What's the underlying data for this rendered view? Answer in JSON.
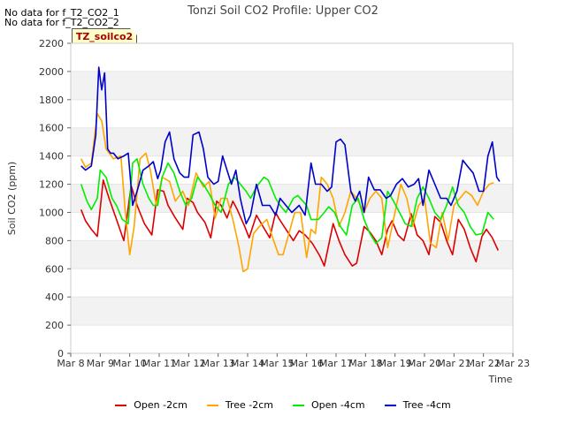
{
  "no_data_notes": [
    "No data for f_T2_CO2_1",
    "No data for f_T2_CO2_2"
  ],
  "tag_label": "TZ_soilco2",
  "chart_data": {
    "type": "line",
    "title": "Tonzi Soil CO2 Profile: Upper CO2",
    "xlabel": "Time",
    "ylabel": "Soil CO2 (ppm)",
    "xlim": [
      8,
      23
    ],
    "ylim": [
      0,
      2200
    ],
    "x_ticks": [
      8,
      9,
      10,
      11,
      12,
      13,
      14,
      15,
      16,
      17,
      18,
      19,
      20,
      21,
      22,
      23
    ],
    "x_tick_labels": [
      "Mar 8",
      "Mar 9",
      "Mar 10",
      "Mar 11",
      "Mar 12",
      "Mar 13",
      "Mar 14",
      "Mar 15",
      "Mar 16",
      "Mar 17",
      "Mar 18",
      "Mar 19",
      "Mar 20",
      "Mar 21",
      "Mar 22",
      "Mar 23"
    ],
    "y_ticks": [
      0,
      200,
      400,
      600,
      800,
      1000,
      1200,
      1400,
      1600,
      1800,
      2000,
      2200
    ],
    "grid": "horizontal bands",
    "legend_position": "bottom",
    "series": [
      {
        "name": "Open -2cm",
        "color": "#dd0000",
        "x": [
          8.35,
          8.5,
          8.7,
          8.9,
          9.1,
          9.3,
          9.55,
          9.8,
          10.05,
          10.25,
          10.5,
          10.75,
          10.95,
          11.15,
          11.3,
          11.55,
          11.8,
          11.95,
          12.15,
          12.3,
          12.55,
          12.75,
          12.95,
          13.1,
          13.3,
          13.5,
          13.65,
          13.9,
          14.05,
          14.3,
          14.55,
          14.75,
          14.95,
          15.05,
          15.3,
          15.55,
          15.75,
          15.95,
          16.2,
          16.45,
          16.6,
          16.9,
          17.1,
          17.3,
          17.55,
          17.7,
          17.95,
          18.15,
          18.35,
          18.55,
          18.75,
          18.9,
          19.1,
          19.3,
          19.55,
          19.75,
          19.95,
          20.15,
          20.35,
          20.55,
          20.75,
          20.95,
          21.15,
          21.35,
          21.55,
          21.75,
          21.95,
          22.1,
          22.3,
          22.5
        ],
        "y": [
          1020,
          940,
          880,
          830,
          1230,
          1100,
          950,
          800,
          1190,
          1050,
          920,
          840,
          1160,
          1150,
          1050,
          960,
          880,
          1100,
          1070,
          1000,
          930,
          820,
          1080,
          1050,
          960,
          1080,
          1020,
          900,
          820,
          980,
          890,
          820,
          1000,
          960,
          880,
          800,
          870,
          840,
          780,
          690,
          620,
          920,
          800,
          700,
          620,
          640,
          900,
          860,
          800,
          700,
          880,
          940,
          840,
          800,
          990,
          840,
          800,
          700,
          970,
          930,
          800,
          700,
          950,
          880,
          750,
          650,
          830,
          880,
          820,
          730
        ]
      },
      {
        "name": "Tree -2cm",
        "color": "#ffa500",
        "x": [
          8.35,
          8.5,
          8.7,
          8.9,
          9.05,
          9.2,
          9.45,
          9.7,
          9.85,
          10.0,
          10.15,
          10.35,
          10.55,
          10.7,
          10.9,
          11.1,
          11.35,
          11.55,
          11.8,
          12.0,
          12.25,
          12.5,
          12.7,
          12.9,
          13.1,
          13.3,
          13.5,
          13.7,
          13.85,
          14.0,
          14.2,
          14.4,
          14.65,
          14.85,
          15.05,
          15.2,
          15.4,
          15.6,
          15.8,
          16.0,
          16.15,
          16.3,
          16.5,
          16.7,
          16.9,
          17.1,
          17.3,
          17.5,
          17.7,
          17.95,
          18.15,
          18.35,
          18.55,
          18.75,
          18.95,
          19.2,
          19.4,
          19.6,
          19.8,
          20.0,
          20.2,
          20.4,
          20.6,
          20.8,
          21.0,
          21.2,
          21.4,
          21.6,
          21.8,
          22.0,
          22.2,
          22.35
        ],
        "y": [
          1380,
          1320,
          1350,
          1700,
          1650,
          1450,
          1380,
          1400,
          1000,
          700,
          900,
          1380,
          1420,
          1300,
          1050,
          1250,
          1220,
          1080,
          1150,
          1050,
          1280,
          1180,
          1220,
          960,
          1100,
          1100,
          950,
          760,
          580,
          600,
          850,
          900,
          950,
          820,
          700,
          700,
          850,
          1000,
          1000,
          680,
          880,
          850,
          1250,
          1200,
          1100,
          900,
          1000,
          1150,
          1100,
          1000,
          1100,
          1150,
          1100,
          750,
          950,
          1200,
          1100,
          900,
          1050,
          1100,
          780,
          750,
          1000,
          800,
          1050,
          1100,
          1150,
          1120,
          1050,
          1150,
          1200,
          1210
        ]
      },
      {
        "name": "Open -4cm",
        "color": "#00ee00",
        "x": [
          8.35,
          8.55,
          8.7,
          8.9,
          9.0,
          9.2,
          9.4,
          9.55,
          9.75,
          9.95,
          10.1,
          10.25,
          10.45,
          10.65,
          10.8,
          10.95,
          11.1,
          11.3,
          11.5,
          11.7,
          11.9,
          12.1,
          12.3,
          12.5,
          12.7,
          12.9,
          13.1,
          13.35,
          13.55,
          13.75,
          13.95,
          14.1,
          14.3,
          14.55,
          14.7,
          14.95,
          15.1,
          15.3,
          15.55,
          15.7,
          16.0,
          16.15,
          16.4,
          16.6,
          16.75,
          16.95,
          17.15,
          17.35,
          17.55,
          17.75,
          17.95,
          18.15,
          18.35,
          18.55,
          18.75,
          18.95,
          19.15,
          19.35,
          19.55,
          19.75,
          19.95,
          20.15,
          20.35,
          20.55,
          20.75,
          20.95,
          21.15,
          21.35,
          21.55,
          21.75,
          21.95,
          22.15,
          22.35
        ],
        "y": [
          1200,
          1080,
          1020,
          1100,
          1300,
          1250,
          1100,
          1050,
          950,
          920,
          1350,
          1380,
          1200,
          1100,
          1050,
          1050,
          1250,
          1350,
          1280,
          1150,
          1050,
          1100,
          1250,
          1200,
          1130,
          1050,
          1000,
          1200,
          1250,
          1200,
          1150,
          1100,
          1180,
          1250,
          1230,
          1100,
          1050,
          1000,
          1100,
          1120,
          1050,
          950,
          950,
          1000,
          1040,
          1000,
          900,
          840,
          1050,
          1100,
          950,
          850,
          780,
          820,
          1150,
          1080,
          1000,
          920,
          900,
          1100,
          1180,
          1100,
          1000,
          950,
          1050,
          1180,
          1050,
          1000,
          900,
          840,
          850,
          1000,
          950
        ]
      },
      {
        "name": "Tree -4cm",
        "color": "#0000cc",
        "x": [
          8.35,
          8.5,
          8.7,
          8.85,
          8.95,
          9.05,
          9.15,
          9.25,
          9.35,
          9.45,
          9.6,
          9.8,
          9.95,
          10.1,
          10.25,
          10.45,
          10.65,
          10.8,
          10.95,
          11.05,
          11.2,
          11.35,
          11.5,
          11.7,
          11.85,
          12.0,
          12.15,
          12.35,
          12.5,
          12.65,
          12.85,
          13.0,
          13.15,
          13.3,
          13.45,
          13.6,
          13.75,
          13.95,
          14.1,
          14.3,
          14.5,
          14.75,
          14.95,
          15.1,
          15.3,
          15.5,
          15.75,
          15.95,
          16.15,
          16.3,
          16.5,
          16.7,
          16.85,
          17.0,
          17.15,
          17.3,
          17.5,
          17.65,
          17.8,
          17.95,
          18.1,
          18.3,
          18.5,
          18.7,
          18.85,
          19.05,
          19.25,
          19.45,
          19.65,
          19.8,
          19.95,
          20.15,
          20.35,
          20.55,
          20.75,
          20.9,
          21.1,
          21.3,
          21.45,
          21.65,
          21.85,
          22.0,
          22.15,
          22.3,
          22.45,
          22.55
        ],
        "y": [
          1330,
          1300,
          1330,
          1550,
          2030,
          1870,
          1990,
          1450,
          1420,
          1420,
          1380,
          1400,
          1420,
          1050,
          1150,
          1300,
          1330,
          1360,
          1240,
          1300,
          1500,
          1570,
          1380,
          1280,
          1250,
          1250,
          1550,
          1570,
          1450,
          1250,
          1200,
          1220,
          1400,
          1300,
          1200,
          1300,
          1100,
          920,
          980,
          1200,
          1050,
          1050,
          980,
          1100,
          1050,
          1000,
          1050,
          980,
          1350,
          1200,
          1200,
          1150,
          1180,
          1500,
          1520,
          1480,
          1150,
          1080,
          1150,
          1000,
          1250,
          1160,
          1160,
          1100,
          1120,
          1200,
          1240,
          1180,
          1200,
          1240,
          1050,
          1300,
          1200,
          1100,
          1100,
          1050,
          1150,
          1370,
          1330,
          1280,
          1150,
          1150,
          1400,
          1500,
          1250,
          1220
        ]
      }
    ]
  }
}
